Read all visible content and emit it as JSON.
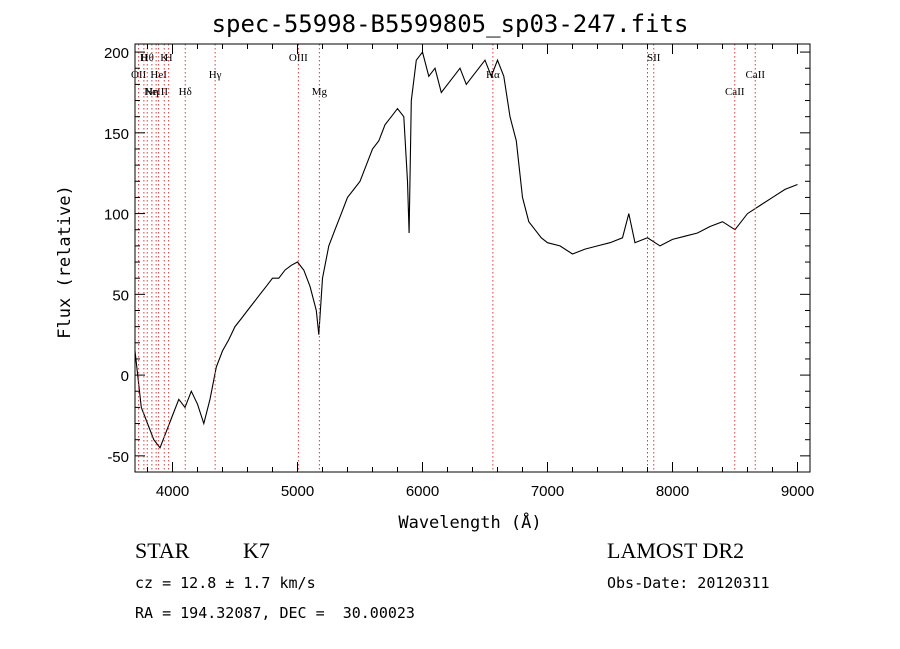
{
  "header": {
    "title": "spec-55998-B5599805_sp03-247.fits"
  },
  "info": {
    "class": "STAR",
    "subclass": "K7",
    "survey": "LAMOST DR2",
    "cz": "cz = 12.8 ± 1.7 km/s",
    "obs_date": "Obs-Date: 20120311",
    "radec": "RA = 194.32087, DEC =  30.00023"
  },
  "chart_data": {
    "type": "line",
    "title": "spec-55998-B5599805_sp03-247.fits",
    "xlabel": "Wavelength (Å)",
    "ylabel": "Flux (relative)",
    "xlim": [
      3700,
      9100
    ],
    "ylim": [
      -60,
      205
    ],
    "xticks": [
      4000,
      5000,
      6000,
      7000,
      8000,
      9000
    ],
    "yticks": [
      -50,
      0,
      50,
      100,
      150,
      200
    ],
    "grid": false,
    "line_color": "#000000",
    "marker_color": "#d04040",
    "series": [
      {
        "x": [
          3700,
          3750,
          3800,
          3850,
          3900,
          3950,
          4000,
          4050,
          4100,
          4150,
          4200,
          4250,
          4300,
          4350,
          4400,
          4450,
          4500,
          4550,
          4600,
          4650,
          4700,
          4750,
          4800,
          4850,
          4900,
          4950,
          5000,
          5050,
          5100,
          5150,
          5170,
          5200,
          5250,
          5300,
          5350,
          5400,
          5450,
          5500,
          5550,
          5600,
          5650,
          5700,
          5750,
          5800,
          5850,
          5880,
          5893,
          5910,
          5950,
          6000,
          6050,
          6100,
          6150,
          6200,
          6250,
          6300,
          6350,
          6400,
          6450,
          6500,
          6550,
          6600,
          6650,
          6700,
          6750,
          6800,
          6850,
          6900,
          6950,
          7000,
          7100,
          7200,
          7300,
          7400,
          7500,
          7600,
          7650,
          7700,
          7800,
          7900,
          8000,
          8100,
          8200,
          8300,
          8400,
          8500,
          8600,
          8700,
          8800,
          8900,
          9000
        ],
        "values": [
          15,
          -20,
          -30,
          -40,
          -45,
          -35,
          -25,
          -15,
          -20,
          -10,
          -18,
          -30,
          -15,
          5,
          15,
          22,
          30,
          35,
          40,
          45,
          50,
          55,
          60,
          60,
          65,
          68,
          70,
          65,
          55,
          40,
          25,
          60,
          80,
          90,
          100,
          110,
          115,
          120,
          130,
          140,
          145,
          155,
          160,
          165,
          160,
          120,
          88,
          170,
          195,
          200,
          185,
          190,
          175,
          180,
          185,
          190,
          180,
          185,
          190,
          195,
          185,
          195,
          185,
          160,
          145,
          110,
          95,
          90,
          85,
          82,
          80,
          75,
          78,
          80,
          82,
          85,
          100,
          82,
          85,
          80,
          84,
          86,
          88,
          92,
          95,
          90,
          100,
          105,
          110,
          115,
          118
        ]
      }
    ],
    "lines": [
      {
        "wavelength": 3729,
        "label": "OII",
        "row": 1
      },
      {
        "wavelength": 3771,
        "label": "H",
        "row": 0
      },
      {
        "wavelength": 3798,
        "label": "Hθ",
        "row": 0
      },
      {
        "wavelength": 3835,
        "label": "Hη",
        "row": 2
      },
      {
        "wavelength": 3869,
        "label": "NeIII",
        "row": 2
      },
      {
        "wavelength": 3889,
        "label": "HeI",
        "row": 1
      },
      {
        "wavelength": 3934,
        "label": "K",
        "row": 0
      },
      {
        "wavelength": 3969,
        "label": "H",
        "row": 0
      },
      {
        "wavelength": 4102,
        "label": "Hδ",
        "row": 2
      },
      {
        "wavelength": 4341,
        "label": "Hγ",
        "row": 1
      },
      {
        "wavelength": 5007,
        "label": "OIII",
        "row": 0
      },
      {
        "wavelength": 5175,
        "label": "Mg",
        "row": 2
      },
      {
        "wavelength": 6563,
        "label": "Hα",
        "row": 1
      },
      {
        "wavelength": 7800,
        "label": "",
        "row": 0
      },
      {
        "wavelength": 7850,
        "label": "SII",
        "row": 0
      },
      {
        "wavelength": 8498,
        "label": "CaII",
        "row": 2
      },
      {
        "wavelength": 8662,
        "label": "CaII",
        "row": 1
      }
    ]
  }
}
